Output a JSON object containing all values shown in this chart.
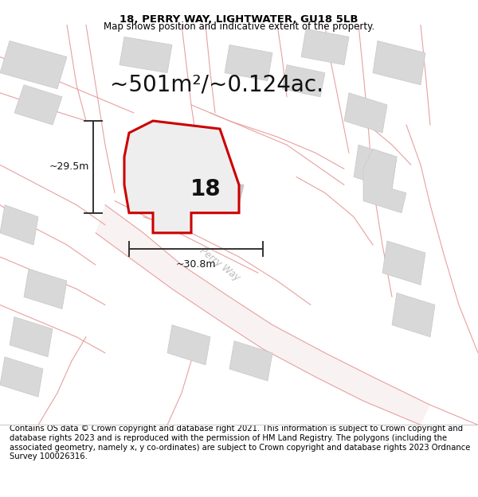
{
  "title_line1": "18, PERRY WAY, LIGHTWATER, GU18 5LB",
  "title_line2": "Map shows position and indicative extent of the property.",
  "area_text": "~501m²/~0.124ac.",
  "property_number": "18",
  "dim_width": "~30.8m",
  "dim_height": "~29.5m",
  "road_label": "Perry Way",
  "footer_text": "Contains OS data © Crown copyright and database right 2021. This information is subject to Crown copyright and database rights 2023 and is reproduced with the permission of HM Land Registry. The polygons (including the associated geometry, namely x, y co-ordinates) are subject to Crown copyright and database rights 2023 Ordnance Survey 100026316.",
  "bg_color": "#ffffff",
  "map_bg": "#f7f7f7",
  "property_outline_color": "#cc0000",
  "road_line_color": "#e8a0a0",
  "road_fill_color": "#f5e8e8",
  "building_fill": "#d8d8d8",
  "building_edge": "#c8c8c8",
  "dim_line_color": "#333333",
  "title_fontsize": 9.5,
  "subtitle_fontsize": 8.5,
  "area_fontsize": 20,
  "number_fontsize": 20,
  "dim_label_fontsize": 9,
  "footer_fontsize": 7.2,
  "road_lw": 0.8,
  "prop_lw": 2.2
}
